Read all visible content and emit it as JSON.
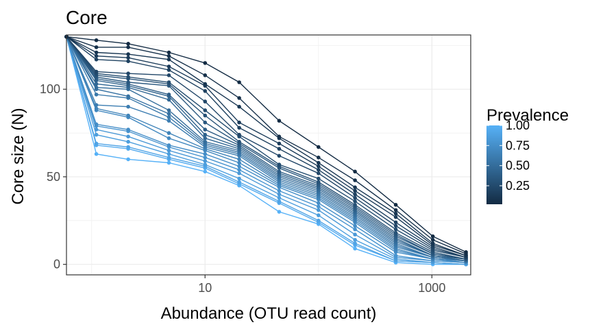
{
  "chart_data": {
    "type": "line",
    "title": "Core",
    "xlabel": "Abundance (OTU read count)",
    "ylabel": "Core size (N)",
    "x_scale": "log10",
    "xlim": [
      0.6,
      2200
    ],
    "ylim": [
      -6,
      131
    ],
    "x_ticks": [
      10,
      1000
    ],
    "x_tick_labels": [
      "10",
      "1000"
    ],
    "y_ticks": [
      0,
      50,
      100
    ],
    "y_tick_labels": [
      "0",
      "50",
      "100"
    ],
    "grid": true,
    "legend": {
      "title": "Prevalence",
      "placement": "right",
      "type": "colorbar",
      "tick_values": [
        1.0,
        0.75,
        0.5,
        0.25
      ],
      "tick_labels": [
        "1.00",
        "0.75",
        "0.50",
        "0.25"
      ],
      "range": [
        0.02,
        1.0
      ],
      "color_low": "#132B43",
      "color_high": "#56B1F7"
    },
    "x": [
      0.6,
      1.1,
      2.1,
      4.8,
      10,
      20,
      45,
      100,
      210,
      480,
      1020,
      2000
    ],
    "series": [
      {
        "prevalence": 0.02,
        "values": [
          130,
          128,
          126,
          121,
          115,
          104,
          82,
          67,
          53,
          34,
          16,
          7
        ]
      },
      {
        "prevalence": 0.06,
        "values": [
          130,
          124,
          124,
          119,
          108,
          95,
          73,
          61,
          48,
          31,
          14,
          6
        ]
      },
      {
        "prevalence": 0.1,
        "values": [
          130,
          121,
          120,
          117,
          103,
          90,
          72,
          58,
          44,
          29,
          12,
          5
        ]
      },
      {
        "prevalence": 0.14,
        "values": [
          130,
          119,
          118,
          113,
          102,
          81,
          69,
          56,
          42,
          27,
          11,
          5
        ]
      },
      {
        "prevalence": 0.18,
        "values": [
          130,
          117,
          116,
          111,
          99,
          78,
          66,
          54,
          40,
          24,
          10,
          4
        ]
      },
      {
        "prevalence": 0.22,
        "values": [
          130,
          110,
          109,
          108,
          93,
          74,
          62,
          52,
          38,
          22,
          9,
          4
        ]
      },
      {
        "prevalence": 0.26,
        "values": [
          130,
          109,
          107,
          104,
          88,
          73,
          57,
          49,
          36,
          20,
          8,
          4
        ]
      },
      {
        "prevalence": 0.3,
        "values": [
          130,
          108,
          106,
          103,
          85,
          70,
          56,
          47,
          34,
          18,
          7,
          3
        ]
      },
      {
        "prevalence": 0.34,
        "values": [
          130,
          107,
          104,
          102,
          81,
          69,
          55,
          46,
          33,
          17,
          6,
          3
        ]
      },
      {
        "prevalence": 0.38,
        "values": [
          130,
          106,
          103,
          97,
          77,
          68,
          53,
          45,
          32,
          16,
          6,
          3
        ]
      },
      {
        "prevalence": 0.42,
        "values": [
          130,
          105,
          102,
          96,
          74,
          67,
          52,
          44,
          31,
          15,
          5,
          3
        ]
      },
      {
        "prevalence": 0.46,
        "values": [
          130,
          103,
          101,
          94,
          72,
          66,
          51,
          43,
          30,
          14,
          5,
          2
        ]
      },
      {
        "prevalence": 0.5,
        "values": [
          130,
          101,
          100,
          88,
          70,
          65,
          50,
          42,
          29,
          13,
          5,
          2
        ]
      },
      {
        "prevalence": 0.54,
        "values": [
          130,
          100,
          96,
          86,
          69,
          64,
          49,
          41,
          28,
          12,
          4,
          2
        ]
      },
      {
        "prevalence": 0.58,
        "values": [
          130,
          97,
          95,
          84,
          68,
          63,
          48,
          40,
          27,
          11,
          4,
          2
        ]
      },
      {
        "prevalence": 0.62,
        "values": [
          130,
          91,
          90,
          82,
          67,
          62,
          47,
          39,
          26,
          10,
          4,
          2
        ]
      },
      {
        "prevalence": 0.66,
        "values": [
          130,
          89,
          85,
          75,
          66,
          60,
          46,
          38,
          25,
          9,
          3,
          2
        ]
      },
      {
        "prevalence": 0.7,
        "values": [
          130,
          88,
          84,
          72,
          65,
          58,
          45,
          37,
          24,
          8,
          3,
          1
        ]
      },
      {
        "prevalence": 0.74,
        "values": [
          130,
          80,
          77,
          68,
          63,
          56,
          44,
          35,
          22,
          7,
          3,
          1
        ]
      },
      {
        "prevalence": 0.78,
        "values": [
          130,
          79,
          76,
          67,
          61,
          54,
          42,
          33,
          20,
          5,
          2,
          1
        ]
      },
      {
        "prevalence": 0.82,
        "values": [
          130,
          77,
          73,
          65,
          59,
          52,
          40,
          31,
          17,
          4,
          2,
          1
        ]
      },
      {
        "prevalence": 0.86,
        "values": [
          130,
          74,
          70,
          63,
          57,
          49,
          38,
          28,
          14,
          3,
          1,
          0
        ]
      },
      {
        "prevalence": 0.9,
        "values": [
          130,
          69,
          67,
          61,
          56,
          47,
          36,
          25,
          12,
          2,
          1,
          0
        ]
      },
      {
        "prevalence": 0.95,
        "values": [
          130,
          68,
          66,
          60,
          55,
          46,
          35,
          24,
          11,
          2,
          1,
          0
        ]
      },
      {
        "prevalence": 1.0,
        "values": [
          130,
          63,
          60,
          58,
          53,
          45,
          30,
          23,
          9,
          1,
          0,
          0
        ]
      }
    ]
  }
}
